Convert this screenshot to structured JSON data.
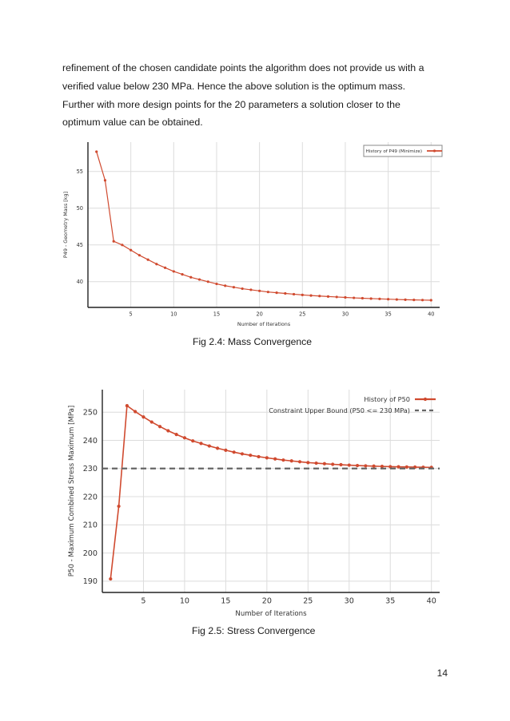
{
  "paragraph": {
    "lines": [
      "refinement of the chosen candidate points the algorithm does not provide us with a",
      "verified value below 230 MPa.  Hence the above solution is the optimum mass.",
      "Further with more design points for the 20 parameters a solution closer to the",
      "optimum value can be obtained."
    ]
  },
  "figures": [
    {
      "caption": "Fig 2.4: Mass Convergence",
      "chart_data": {
        "type": "line",
        "title": "",
        "xlabel": "Number of Iterations",
        "ylabel": "P49 - Geometry Mass  [kg]",
        "xlim": [
          0,
          41
        ],
        "ylim": [
          36.5,
          59
        ],
        "xticks": [
          5,
          10,
          15,
          20,
          25,
          30,
          35,
          40
        ],
        "yticks": [
          40,
          45,
          50,
          55
        ],
        "grid": true,
        "legend_position": "top-right",
        "series": [
          {
            "name": "History of P49 (Minimize)",
            "color": "#d04a2f",
            "x": [
              1,
              2,
              3,
              4,
              5,
              6,
              7,
              8,
              9,
              10,
              11,
              12,
              13,
              14,
              15,
              16,
              17,
              18,
              19,
              20,
              21,
              22,
              23,
              24,
              25,
              26,
              27,
              28,
              29,
              30,
              31,
              32,
              33,
              34,
              35,
              36,
              37,
              38,
              39,
              40
            ],
            "values": [
              57.7,
              53.8,
              45.5,
              45.0,
              44.3,
              43.6,
              43.0,
              42.4,
              41.9,
              41.4,
              41.0,
              40.6,
              40.3,
              40.0,
              39.7,
              39.45,
              39.25,
              39.05,
              38.9,
              38.75,
              38.6,
              38.5,
              38.4,
              38.3,
              38.2,
              38.12,
              38.05,
              37.98,
              37.92,
              37.86,
              37.8,
              37.75,
              37.7,
              37.66,
              37.62,
              37.58,
              37.55,
              37.52,
              37.5,
              37.48
            ]
          }
        ]
      }
    },
    {
      "caption": "Fig 2.5: Stress Convergence",
      "chart_data": {
        "type": "line",
        "title": "",
        "xlabel": "Number of Iterations",
        "ylabel": "P50 - Maximum Combined Stress Maximum  [MPa]",
        "xlim": [
          0,
          41
        ],
        "ylim": [
          186,
          258
        ],
        "xticks": [
          5,
          10,
          15,
          20,
          25,
          30,
          35,
          40
        ],
        "yticks": [
          190,
          200,
          210,
          220,
          230,
          240,
          250
        ],
        "grid": true,
        "legend_position": "top-right",
        "series": [
          {
            "name": "History of P50",
            "color": "#d04a2f",
            "x": [
              1,
              2,
              3,
              4,
              5,
              6,
              7,
              8,
              9,
              10,
              11,
              12,
              13,
              14,
              15,
              16,
              17,
              18,
              19,
              20,
              21,
              22,
              23,
              24,
              25,
              26,
              27,
              28,
              29,
              30,
              31,
              32,
              33,
              34,
              35,
              36,
              37,
              38,
              39,
              40
            ],
            "values": [
              190.8,
              216.6,
              252.3,
              250.2,
              248.3,
              246.5,
              244.9,
              243.4,
              242.1,
              240.9,
              239.8,
              238.9,
              238.0,
              237.2,
              236.5,
              235.8,
              235.2,
              234.7,
              234.2,
              233.8,
              233.4,
              233.0,
              232.7,
              232.4,
              232.1,
              231.9,
              231.7,
              231.5,
              231.35,
              231.2,
              231.05,
              230.95,
              230.85,
              230.75,
              230.65,
              230.6,
              230.55,
              230.5,
              230.45,
              230.4
            ]
          },
          {
            "name": "Constraint Upper Bound (P50 <= 230 MPa)",
            "color": "#666666",
            "constant": 230
          }
        ]
      }
    }
  ],
  "page_number": "14"
}
